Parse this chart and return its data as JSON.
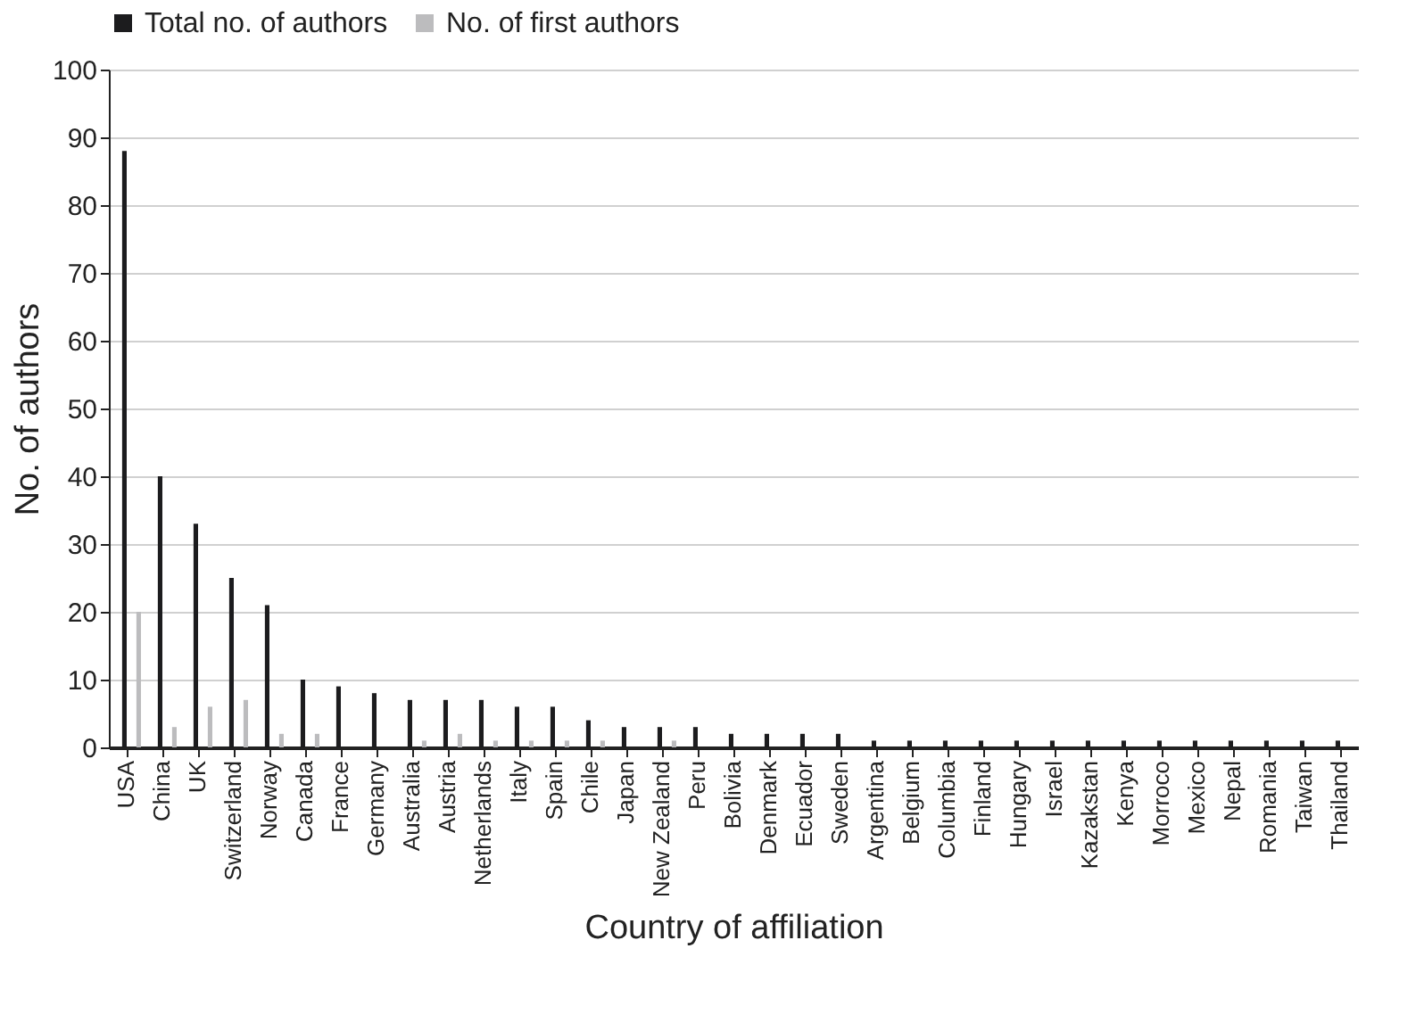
{
  "chart_data": {
    "type": "bar",
    "xlabel": "Country of affiliation",
    "ylabel": "No. of authors",
    "categories": [
      "USA",
      "China",
      "UK",
      "Switzerland",
      "Norway",
      "Canada",
      "France",
      "Germany",
      "Australia",
      "Austria",
      "Netherlands",
      "Italy",
      "Spain",
      "Chile",
      "Japan",
      "New Zealand",
      "Peru",
      "Bolivia",
      "Denmark",
      "Ecuador",
      "Sweden",
      "Argentina",
      "Belgium",
      "Columbia",
      "Finland",
      "Hungary",
      "Israel",
      "Kazakstan",
      "Kenya",
      "Morroco",
      "Mexico",
      "Nepal",
      "Romania",
      "Taiwan",
      "Thailand"
    ],
    "series": [
      {
        "name": "Total no. of authors",
        "color": "#1c1c1e",
        "values": [
          88,
          40,
          33,
          25,
          21,
          10,
          9,
          8,
          7,
          7,
          7,
          6,
          6,
          4,
          3,
          3,
          3,
          2,
          2,
          2,
          2,
          1,
          1,
          1,
          1,
          1,
          1,
          1,
          1,
          1,
          1,
          1,
          1,
          1,
          1
        ]
      },
      {
        "name": "No. of first authors",
        "color": "#bcbcbe",
        "values": [
          20,
          3,
          6,
          7,
          2,
          2,
          0,
          0,
          1,
          2,
          1,
          1,
          1,
          1,
          0,
          1,
          0,
          0,
          0,
          0,
          0,
          0,
          0,
          0,
          0,
          0,
          0,
          0,
          0,
          0,
          0,
          0,
          0,
          0,
          0
        ]
      }
    ],
    "ylim": [
      0,
      100
    ],
    "yticks": [
      0,
      10,
      20,
      30,
      40,
      50,
      60,
      70,
      80,
      90,
      100
    ],
    "grid": "y",
    "legend": "top"
  }
}
